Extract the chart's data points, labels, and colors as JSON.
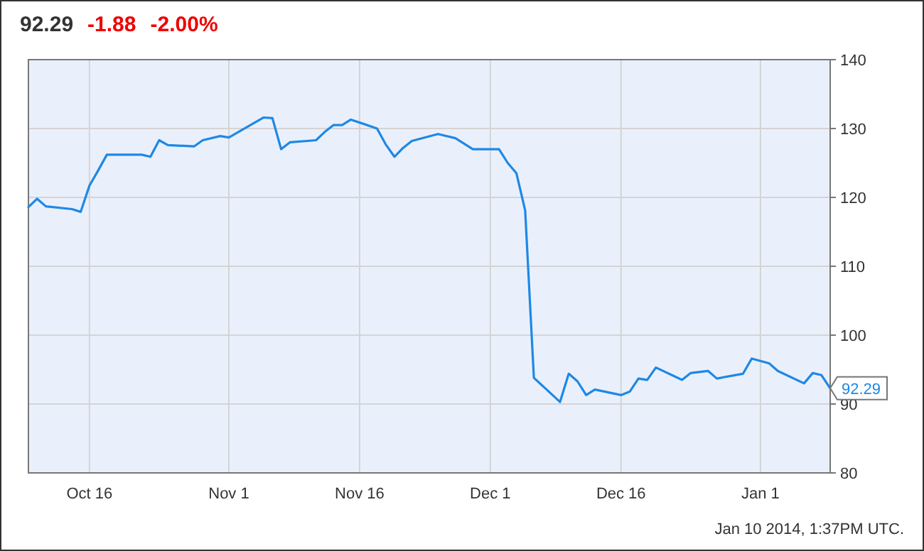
{
  "chart_data": {
    "type": "line",
    "title": "92.29",
    "annotations": [
      "-1.88",
      "-2.00%",
      "Jan 10 2014, 1:37PM UTC.",
      {
        "text": "92.29",
        "x": "2014-01-09",
        "y": 92.29
      }
    ],
    "x": [
      "2013-10-09",
      "2013-10-10",
      "2013-10-11",
      "2013-10-14",
      "2013-10-15",
      "2013-10-16",
      "2013-10-17",
      "2013-10-18",
      "2013-10-22",
      "2013-10-23",
      "2013-10-24",
      "2013-10-25",
      "2013-10-28",
      "2013-10-29",
      "2013-10-31",
      "2013-11-01",
      "2013-11-05",
      "2013-11-06",
      "2013-11-07",
      "2013-11-08",
      "2013-11-11",
      "2013-11-12",
      "2013-11-13",
      "2013-11-14",
      "2013-11-15",
      "2013-11-18",
      "2013-11-19",
      "2013-11-20",
      "2013-11-21",
      "2013-11-22",
      "2013-11-25",
      "2013-11-27",
      "2013-11-29",
      "2013-12-02",
      "2013-12-03",
      "2013-12-04",
      "2013-12-05",
      "2013-12-06",
      "2013-12-09",
      "2013-12-10",
      "2013-12-11",
      "2013-12-12",
      "2013-12-13",
      "2013-12-16",
      "2013-12-17",
      "2013-12-18",
      "2013-12-19",
      "2013-12-20",
      "2013-12-23",
      "2013-12-24",
      "2013-12-26",
      "2013-12-27",
      "2013-12-30",
      "2013-12-31",
      "2014-01-02",
      "2014-01-03",
      "2014-01-06",
      "2014-01-07",
      "2014-01-08",
      "2014-01-09"
    ],
    "series": [
      {
        "color": "#1e88e5",
        "values": [
          118.6,
          119.8,
          118.7,
          118.3,
          117.9,
          121.7,
          123.9,
          126.2,
          126.2,
          125.9,
          128.3,
          127.6,
          127.4,
          128.3,
          128.9,
          128.7,
          131.6,
          131.5,
          127.0,
          128.0,
          128.3,
          129.5,
          130.5,
          130.5,
          131.3,
          130.0,
          127.7,
          125.9,
          127.2,
          128.2,
          129.2,
          128.6,
          127.0,
          127.0,
          125.0,
          123.5,
          118.1,
          93.8,
          90.3,
          94.4,
          93.3,
          91.3,
          92.1,
          91.3,
          91.8,
          93.7,
          93.5,
          95.3,
          93.5,
          94.5,
          94.8,
          93.7,
          94.4,
          96.6,
          95.9,
          94.8,
          93.0,
          94.5,
          94.2,
          92.29
        ]
      }
    ],
    "xlim": [
      "2013-10-09",
      "2014-01-09"
    ],
    "xticks": [
      {
        "value": "2013-10-16",
        "label": "Oct 16"
      },
      {
        "value": "2013-11-01",
        "label": "Nov 1"
      },
      {
        "value": "2013-11-16",
        "label": "Nov 16"
      },
      {
        "value": "2013-12-01",
        "label": "Dec 1"
      },
      {
        "value": "2013-12-16",
        "label": "Dec 16"
      },
      {
        "value": "2014-01-01",
        "label": "Jan 1"
      }
    ],
    "ylim": [
      80,
      140
    ],
    "yticks": [
      80,
      90,
      100,
      110,
      120,
      130,
      140
    ],
    "grid": true,
    "marker": "none",
    "line_style": "solid"
  }
}
